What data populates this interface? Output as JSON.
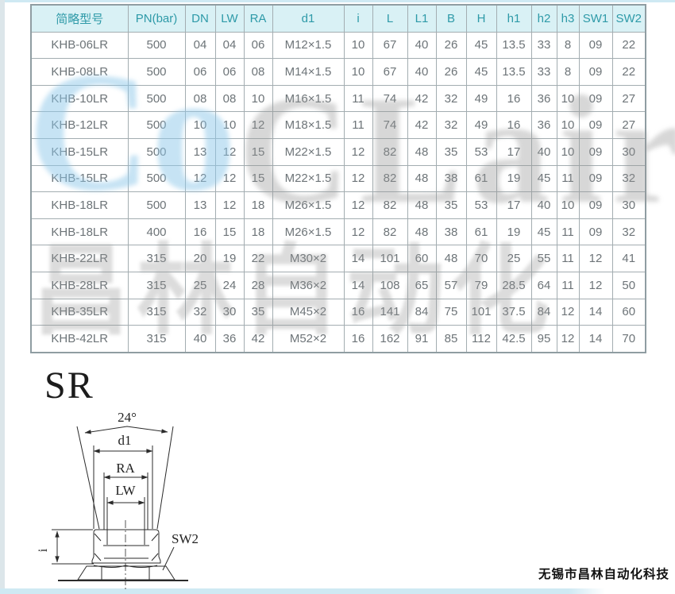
{
  "page": {
    "section_label": "SR",
    "company": "无锡市昌林自动化科技"
  },
  "watermark": {
    "blue": "Co",
    "latin": "CLair",
    "cjk": "昌林自动化"
  },
  "table": {
    "headers": [
      "简略型号",
      "PN(bar)",
      "DN",
      "LW",
      "RA",
      "d1",
      "i",
      "L",
      "L1",
      "B",
      "H",
      "h1",
      "h2",
      "h3",
      "SW1",
      "SW2"
    ],
    "rows": [
      [
        "KHB-06LR",
        "500",
        "04",
        "04",
        "06",
        "M12×1.5",
        "10",
        "67",
        "40",
        "26",
        "45",
        "13.5",
        "33",
        "8",
        "09",
        "22"
      ],
      [
        "KHB-08LR",
        "500",
        "06",
        "06",
        "08",
        "M14×1.5",
        "10",
        "67",
        "40",
        "26",
        "45",
        "13.5",
        "33",
        "8",
        "09",
        "22"
      ],
      [
        "KHB-10LR",
        "500",
        "08",
        "08",
        "10",
        "M16×1.5",
        "11",
        "74",
        "42",
        "32",
        "49",
        "16",
        "36",
        "10",
        "09",
        "27"
      ],
      [
        "KHB-12LR",
        "500",
        "10",
        "10",
        "12",
        "M18×1.5",
        "11",
        "74",
        "42",
        "32",
        "49",
        "16",
        "36",
        "10",
        "09",
        "27"
      ],
      [
        "KHB-15LR",
        "500",
        "13",
        "12",
        "15",
        "M22×1.5",
        "12",
        "82",
        "48",
        "35",
        "53",
        "17",
        "40",
        "10",
        "09",
        "30"
      ],
      [
        "KHB-15LR",
        "500",
        "12",
        "12",
        "15",
        "M22×1.5",
        "12",
        "82",
        "48",
        "38",
        "61",
        "19",
        "45",
        "11",
        "09",
        "32"
      ],
      [
        "KHB-18LR",
        "500",
        "13",
        "12",
        "18",
        "M26×1.5",
        "12",
        "82",
        "48",
        "35",
        "53",
        "17",
        "40",
        "10",
        "09",
        "30"
      ],
      [
        "KHB-18LR",
        "400",
        "16",
        "15",
        "18",
        "M26×1.5",
        "12",
        "82",
        "48",
        "38",
        "61",
        "19",
        "45",
        "11",
        "09",
        "32"
      ],
      [
        "KHB-22LR",
        "315",
        "20",
        "19",
        "22",
        "M30×2",
        "14",
        "101",
        "60",
        "48",
        "70",
        "25",
        "55",
        "11",
        "12",
        "41"
      ],
      [
        "KHB-28LR",
        "315",
        "25",
        "24",
        "28",
        "M36×2",
        "14",
        "108",
        "65",
        "57",
        "79",
        "28.5",
        "64",
        "11",
        "12",
        "50"
      ],
      [
        "KHB-35LR",
        "315",
        "32",
        "30",
        "35",
        "M45×2",
        "16",
        "141",
        "84",
        "75",
        "101",
        "37.5",
        "84",
        "12",
        "14",
        "60"
      ],
      [
        "KHB-42LR",
        "315",
        "40",
        "36",
        "42",
        "M52×2",
        "16",
        "162",
        "91",
        "85",
        "112",
        "42.5",
        "95",
        "12",
        "14",
        "70"
      ]
    ]
  },
  "diagram": {
    "labels": {
      "angle": "24°",
      "d1": "d1",
      "ra": "RA",
      "lw": "LW",
      "i": "i",
      "sw2": "SW2"
    }
  },
  "colors": {
    "header_bg": "#d9f1f5",
    "header_text": "#2e9aa8",
    "cell_text": "#6d7478",
    "table_border": "#a3adb1",
    "frame_blue": "#cfe9f3",
    "diagram_line": "#2b2b2b"
  }
}
